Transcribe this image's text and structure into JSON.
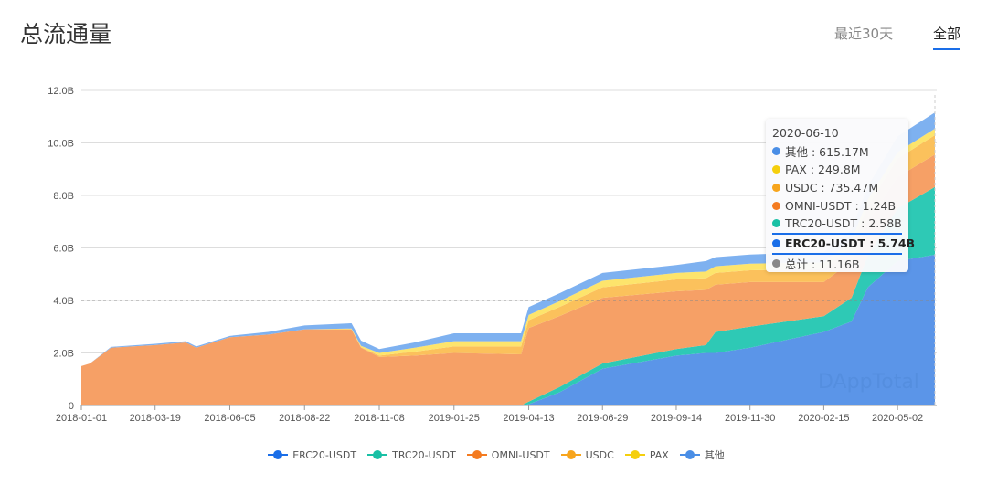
{
  "header": {
    "title": "总流通量",
    "tab_30d": "最近30天",
    "tab_all": "全部"
  },
  "watermark": "DAppTotal",
  "tooltip": {
    "date": "2020-06-10",
    "rows": [
      {
        "label": "其他 : 615.17M",
        "color": "#4a8ee6"
      },
      {
        "label": "PAX : 249.8M",
        "color": "#f5cf0d"
      },
      {
        "label": "USDC : 735.47M",
        "color": "#f7a51d"
      },
      {
        "label": "OMNI-USDT : 1.24B",
        "color": "#f47b20"
      },
      {
        "label": "TRC20-USDT : 2.58B",
        "color": "#19c0a5"
      },
      {
        "label": "ERC20-USDT : 5.74B",
        "color": "#1a6ee8",
        "highlight": true
      },
      {
        "label": "总计 : 11.16B",
        "color": "#888888"
      }
    ]
  },
  "chart_data": {
    "type": "area",
    "stacked": true,
    "title": "总流通量",
    "ylim": [
      0,
      12
    ],
    "yticks": [
      0,
      2,
      4,
      6,
      8,
      10,
      12
    ],
    "ytick_labels": [
      "0",
      "2.0B",
      "4.0B",
      "6.0B",
      "8.0B",
      "10.0B",
      "12.0B"
    ],
    "xtick_labels": [
      "2018-01-01",
      "2018-03-19",
      "2018-06-05",
      "2018-08-22",
      "2018-11-08",
      "2019-01-25",
      "2019-04-13",
      "2019-06-29",
      "2019-09-14",
      "2019-11-30",
      "2020-02-15",
      "2020-05-02"
    ],
    "reference_line": 4.0,
    "legend_position": "bottom",
    "unit": "B",
    "dates": [
      "2018-01-01",
      "2018-01-10",
      "2018-02-01",
      "2018-03-19",
      "2018-04-20",
      "2018-05-01",
      "2018-06-05",
      "2018-07-15",
      "2018-08-22",
      "2018-10-10",
      "2018-10-20",
      "2018-11-08",
      "2018-12-15",
      "2019-01-25",
      "2019-04-05",
      "2019-04-13",
      "2019-05-15",
      "2019-06-29",
      "2019-09-14",
      "2019-10-15",
      "2019-10-25",
      "2019-11-30",
      "2020-02-15",
      "2020-03-15",
      "2020-04-01",
      "2020-05-02",
      "2020-06-10"
    ],
    "series": [
      {
        "name": "ERC20-USDT",
        "color": "#1a6ee8",
        "fill": "#5b95e8",
        "values": [
          0,
          0,
          0,
          0,
          0,
          0,
          0,
          0,
          0,
          0,
          0,
          0,
          0,
          0,
          0,
          0.05,
          0.5,
          1.4,
          1.9,
          2.0,
          2.0,
          2.2,
          2.8,
          3.2,
          4.5,
          5.5,
          5.74
        ]
      },
      {
        "name": "TRC20-USDT",
        "color": "#19c0a5",
        "fill": "#2ec9b5",
        "values": [
          0,
          0,
          0,
          0,
          0,
          0,
          0,
          0,
          0,
          0,
          0,
          0,
          0,
          0,
          0,
          0.1,
          0.2,
          0.2,
          0.25,
          0.3,
          0.8,
          0.8,
          0.6,
          0.9,
          1.2,
          2.0,
          2.58
        ]
      },
      {
        "name": "OMNI-USDT",
        "color": "#f47b20",
        "fill": "#f6a066",
        "values": [
          1.5,
          1.6,
          2.2,
          2.3,
          2.4,
          2.2,
          2.6,
          2.7,
          2.9,
          2.9,
          2.2,
          1.85,
          1.9,
          2.0,
          1.95,
          2.8,
          2.7,
          2.5,
          2.2,
          2.1,
          1.8,
          1.7,
          1.3,
          1.4,
          1.3,
          1.2,
          1.24
        ]
      },
      {
        "name": "USDC",
        "color": "#f7a51d",
        "fill": "#fbc15c",
        "values": [
          0,
          0,
          0,
          0,
          0,
          0,
          0,
          0,
          0,
          0,
          0.02,
          0.05,
          0.15,
          0.25,
          0.3,
          0.3,
          0.35,
          0.4,
          0.45,
          0.45,
          0.45,
          0.45,
          0.5,
          0.55,
          0.6,
          0.7,
          0.735
        ]
      },
      {
        "name": "PAX",
        "color": "#f5cf0d",
        "fill": "#fde46c",
        "values": [
          0,
          0,
          0,
          0,
          0,
          0,
          0,
          0,
          0,
          0.03,
          0.05,
          0.1,
          0.15,
          0.2,
          0.2,
          0.2,
          0.22,
          0.25,
          0.25,
          0.25,
          0.25,
          0.25,
          0.25,
          0.25,
          0.25,
          0.25,
          0.25
        ]
      },
      {
        "name": "其他",
        "color": "#4a8ee6",
        "fill": "#7eb1f0",
        "values": [
          0,
          0,
          0.03,
          0.05,
          0.05,
          0.05,
          0.05,
          0.1,
          0.15,
          0.2,
          0.2,
          0.15,
          0.2,
          0.3,
          0.3,
          0.3,
          0.3,
          0.3,
          0.3,
          0.4,
          0.35,
          0.35,
          0.4,
          0.4,
          0.5,
          0.6,
          0.615
        ]
      }
    ]
  }
}
